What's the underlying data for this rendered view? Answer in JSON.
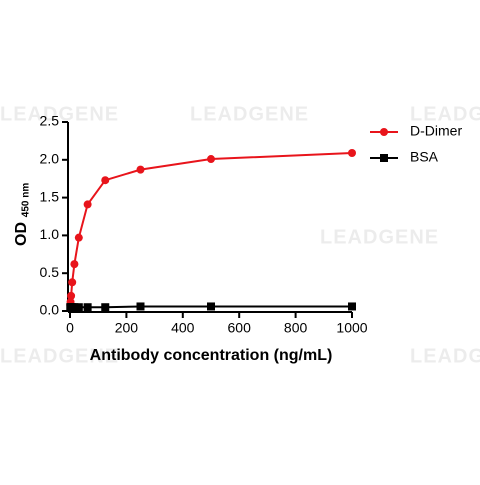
{
  "chart_data": {
    "type": "line",
    "watermark": "LEADGENE",
    "xlabel": "Antibody concentration (ng/mL)",
    "ylabel": "OD",
    "ylabel_sub": "450 nm",
    "xlim": [
      0,
      1000
    ],
    "xticks": [
      0,
      200,
      400,
      600,
      800,
      1000
    ],
    "ylim": [
      0,
      2.5
    ],
    "yticks": [
      {
        "value": 0,
        "label": "0.0"
      },
      0.5,
      {
        "value": 1,
        "label": "1.0"
      },
      1.5,
      {
        "value": 2,
        "label": "2.0"
      },
      2.5
    ],
    "legend": "top-right",
    "series": [
      {
        "name": "D-Dimer",
        "color": "#e8141b",
        "marker": "circle",
        "x": [
          1000,
          500,
          250,
          125,
          62.5,
          31.25,
          15.6,
          7.8,
          3.9,
          1.95,
          0.98
        ],
        "values": [
          2.09,
          2.01,
          1.87,
          1.73,
          1.41,
          0.97,
          0.62,
          0.38,
          0.2,
          0.12,
          0.08
        ]
      },
      {
        "name": "BSA",
        "color": "#000000",
        "marker": "square",
        "x": [
          1000,
          500,
          250,
          125,
          62.5,
          31.25,
          15.6,
          7.8,
          3.9,
          1.95,
          0.98
        ],
        "values": [
          0.06,
          0.06,
          0.06,
          0.05,
          0.05,
          0.05,
          0.05,
          0.05,
          0.05,
          0.05,
          0.05
        ]
      }
    ]
  }
}
